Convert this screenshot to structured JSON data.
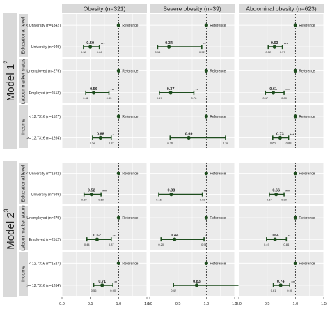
{
  "chart_data": {
    "type": "forest",
    "columns": [
      "Obesity (n=321)",
      "Severe obesity (n=39)",
      "Abdominal obesity (n=623)"
    ],
    "x_ticks": [
      "0.0",
      "0.5",
      "1.0",
      "1.5"
    ],
    "xlim": [
      0,
      1.5
    ],
    "reference_value": 1.0,
    "reference_label": "Reference",
    "models": [
      {
        "label": "Model 1",
        "superscript": "2",
        "groups": [
          {
            "label": "Educational level",
            "rows": [
              {
                "label": "< University (n=1842)",
                "ref": true
              },
              {
                "label": "University (n=949)",
                "values": [
                  {
                    "est": 0.5,
                    "est_label": "0.50",
                    "lo": 0.38,
                    "hi": 0.66,
                    "lo_label": "0.38",
                    "hi_label": "0.66",
                    "sig": "***"
                  },
                  {
                    "est": 0.34,
                    "est_label": "0.34",
                    "lo": 0.14,
                    "hi": 0.92,
                    "lo_label": "0.14",
                    "hi_label": "0.92",
                    "sig": "**"
                  },
                  {
                    "est": 0.63,
                    "est_label": "0.63",
                    "lo": 0.52,
                    "hi": 0.77,
                    "lo_label": "0.52",
                    "hi_label": "0.77",
                    "sig": "***"
                  }
                ]
              }
            ]
          },
          {
            "label": "Labour market status",
            "rows": [
              {
                "label": "Unemployed (n=279)",
                "ref": true
              },
              {
                "label": "Employed (n=2512)",
                "values": [
                  {
                    "est": 0.56,
                    "est_label": "0.56",
                    "lo": 0.42,
                    "hi": 0.83,
                    "lo_label": "0.42",
                    "hi_label": "0.83",
                    "sig": "***"
                  },
                  {
                    "est": 0.37,
                    "est_label": "0.37",
                    "lo": 0.17,
                    "hi": 0.78,
                    "lo_label": "0.17",
                    "hi_label": "0.78",
                    "sig": "**"
                  },
                  {
                    "est": 0.61,
                    "est_label": "0.61",
                    "lo": 0.47,
                    "hi": 0.8,
                    "lo_label": "0.47",
                    "hi_label": "0.80",
                    "sig": "***"
                  }
                ]
              }
            ]
          },
          {
            "label": "Income",
            "rows": [
              {
                "label": "< 12.731€ (n=1527)",
                "ref": true
              },
              {
                "label": ">= 12.731€ (n=1264)",
                "values": [
                  {
                    "est": 0.68,
                    "est_label": "0.68",
                    "lo": 0.54,
                    "hi": 0.87,
                    "lo_label": "0.54",
                    "hi_label": "0.87",
                    "sig": "*"
                  },
                  {
                    "est": 0.69,
                    "est_label": "0.69",
                    "lo": 0.36,
                    "hi": 1.34,
                    "lo_label": "0.36",
                    "hi_label": "1.34",
                    "sig": ""
                  },
                  {
                    "est": 0.73,
                    "est_label": "0.73",
                    "lo": 0.6,
                    "hi": 0.88,
                    "lo_label": "0.60",
                    "hi_label": "0.88",
                    "sig": "***"
                  }
                ]
              }
            ]
          }
        ]
      },
      {
        "label": "Model 2",
        "superscript": "3",
        "groups": [
          {
            "label": "Educational level",
            "rows": [
              {
                "label": "< University (n=1842)",
                "ref": true
              },
              {
                "label": "University (n=949)",
                "values": [
                  {
                    "est": 0.52,
                    "est_label": "0.52",
                    "lo": 0.39,
                    "hi": 0.69,
                    "lo_label": "0.39",
                    "hi_label": "0.69",
                    "sig": "***"
                  },
                  {
                    "est": 0.38,
                    "est_label": "0.38",
                    "lo": 0.16,
                    "hi": 0.93,
                    "lo_label": "0.16",
                    "hi_label": "0.93",
                    "sig": "**"
                  },
                  {
                    "est": 0.66,
                    "est_label": "0.66",
                    "lo": 0.54,
                    "hi": 0.8,
                    "lo_label": "0.54",
                    "hi_label": "0.80",
                    "sig": "***"
                  }
                ]
              }
            ]
          },
          {
            "label": "Labour market status",
            "rows": [
              {
                "label": "Unemployed (n=279)",
                "ref": true
              },
              {
                "label": "Employed (n=2512)",
                "values": [
                  {
                    "est": 0.62,
                    "est_label": "0.62",
                    "lo": 0.44,
                    "hi": 0.87,
                    "lo_label": "0.44",
                    "hi_label": "0.87",
                    "sig": "**"
                  },
                  {
                    "est": 0.44,
                    "est_label": "0.44",
                    "lo": 0.2,
                    "hi": 0.96,
                    "lo_label": "0.20",
                    "hi_label": "0.96",
                    "sig": "*"
                  },
                  {
                    "est": 0.64,
                    "est_label": "0.64",
                    "lo": 0.49,
                    "hi": 0.84,
                    "lo_label": "0.49",
                    "hi_label": "0.84",
                    "sig": "**"
                  }
                ]
              }
            ]
          },
          {
            "label": "Income",
            "rows": [
              {
                "label": "< 12.731€ (n=1527)",
                "ref": true
              },
              {
                "label": ">= 12.731€ (n=1264)",
                "values": [
                  {
                    "est": 0.71,
                    "est_label": "0.71",
                    "lo": 0.56,
                    "hi": 0.9,
                    "lo_label": "0.56",
                    "hi_label": "0.90",
                    "sig": "**"
                  },
                  {
                    "est": 0.83,
                    "est_label": "0.83",
                    "lo": 0.42,
                    "hi": 1.65,
                    "lo_label": "0.42",
                    "hi_label": "1.65",
                    "sig": ""
                  },
                  {
                    "est": 0.74,
                    "est_label": "0.74",
                    "lo": 0.61,
                    "hi": 0.9,
                    "lo_label": "0.61",
                    "hi_label": "0.90",
                    "sig": "***"
                  }
                ]
              }
            ]
          }
        ]
      }
    ]
  },
  "colors": {
    "point": "#1e4d1e",
    "ci": "#1e4d1e",
    "strip": "#d9d9d9",
    "panel": "#ebebeb",
    "grid": "#ffffff",
    "reference": "#000000"
  }
}
